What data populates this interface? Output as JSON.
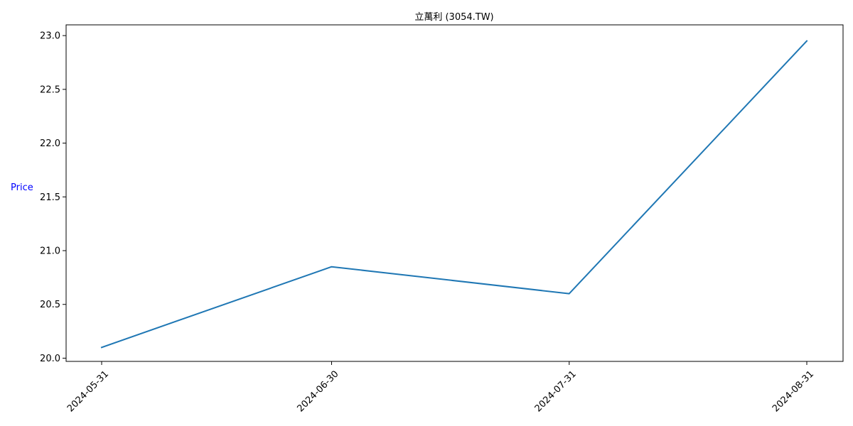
{
  "chart_data": {
    "type": "line",
    "title": "立萬利 (3054.TW)",
    "xlabel": "",
    "ylabel": "Price",
    "ylabel_color": "#0000ff",
    "x": [
      "2024-05-31",
      "2024-06-30",
      "2024-07-31",
      "2024-08-31"
    ],
    "series": [
      {
        "values": [
          20.1,
          20.85,
          20.6,
          22.95
        ],
        "color": "#1f77b4"
      }
    ],
    "yticks": [
      "20.0",
      "20.5",
      "21.0",
      "21.5",
      "22.0",
      "22.5",
      "23.0"
    ],
    "ylim": [
      19.97,
      23.1
    ],
    "grid": false,
    "legend": "none"
  }
}
